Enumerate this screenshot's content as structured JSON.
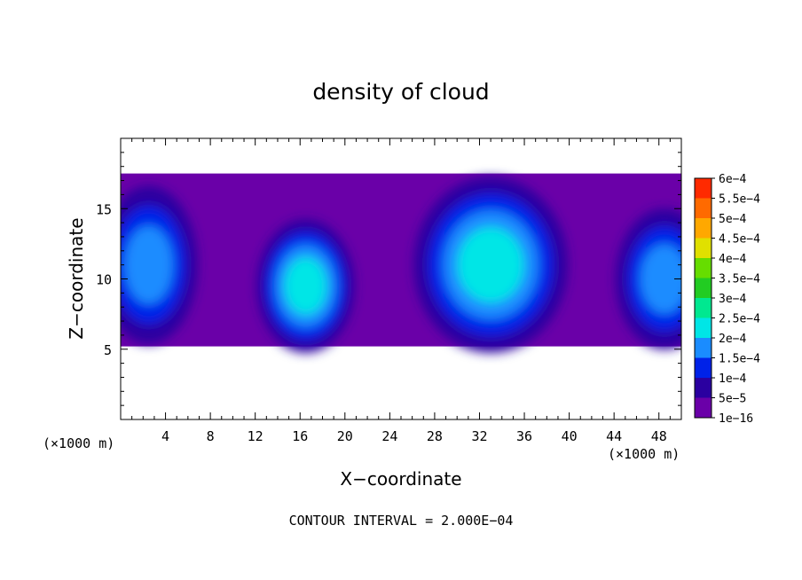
{
  "chart_data": {
    "type": "heatmap",
    "title": "density of cloud",
    "xlabel": "X−coordinate",
    "ylabel": "Z−coordinate",
    "x_unit_left": "(×1000 m)",
    "x_unit_right": "(×1000 m)",
    "footer": "CONTOUR INTERVAL = 2.000E−04",
    "xlim": [
      0,
      50
    ],
    "ylim": [
      0,
      20
    ],
    "x_ticks": [
      4,
      8,
      12,
      16,
      20,
      24,
      28,
      32,
      36,
      40,
      44,
      48
    ],
    "x_tick_labels": [
      "4",
      "8",
      "12",
      "16",
      "20",
      "24",
      "28",
      "32",
      "36",
      "40",
      "44",
      "48"
    ],
    "y_ticks": [
      5,
      10,
      15
    ],
    "y_tick_labels": [
      "5",
      "10",
      "15"
    ],
    "colorbar": {
      "labels": [
        "1e−16",
        "5e−5",
        "1e−4",
        "1.5e−4",
        "2e−4",
        "2.5e−4",
        "3e−4",
        "3.5e−4",
        "4e−4",
        "4.5e−4",
        "5e−4",
        "5.5e−4",
        "6e−4"
      ],
      "colors": [
        "#6a00a8",
        "#2a00a0",
        "#0022e8",
        "#1a8cff",
        "#00e6e6",
        "#00e890",
        "#22cc22",
        "#66dd00",
        "#e0e000",
        "#ffa800",
        "#ff6a00",
        "#ff2a00",
        "#ff8c8c"
      ]
    },
    "cloud_layer_z": [
      5.2,
      17.5
    ],
    "cells": [
      {
        "x": 2.5,
        "z": 11,
        "rx": 3.5,
        "rz": 4.5,
        "peak_density": 0.00015
      },
      {
        "x": 16.5,
        "z": 9.5,
        "rx": 3.5,
        "rz": 3.8,
        "peak_density": 0.00018
      },
      {
        "x": 33,
        "z": 11,
        "rx": 5.5,
        "rz": 5,
        "peak_density": 0.0002
      },
      {
        "x": 48.5,
        "z": 10,
        "rx": 3.5,
        "rz": 4,
        "peak_density": 0.00015
      }
    ]
  }
}
